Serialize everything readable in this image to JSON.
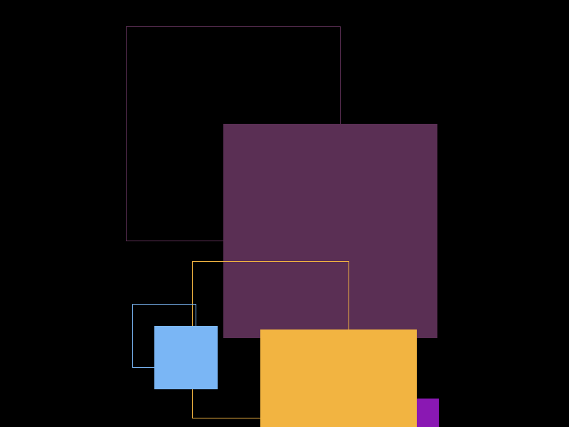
{
  "canvas": {
    "background": "#000000"
  },
  "shapes": [
    {
      "name": "purple-outline-square",
      "style": "outline",
      "color": "#5b2f54"
    },
    {
      "name": "purple-filled-square",
      "style": "filled",
      "color": "#5a2f54"
    },
    {
      "name": "orange-outline-square",
      "style": "outline",
      "color": "#f2b441"
    },
    {
      "name": "blue-outline-square",
      "style": "outline",
      "color": "#7ab6f5"
    },
    {
      "name": "blue-filled-square",
      "style": "filled",
      "color": "#7ab6f5"
    },
    {
      "name": "violet-filled-square",
      "style": "filled",
      "color": "#8a18b3"
    },
    {
      "name": "orange-filled-square",
      "style": "filled",
      "color": "#f2b441"
    }
  ]
}
